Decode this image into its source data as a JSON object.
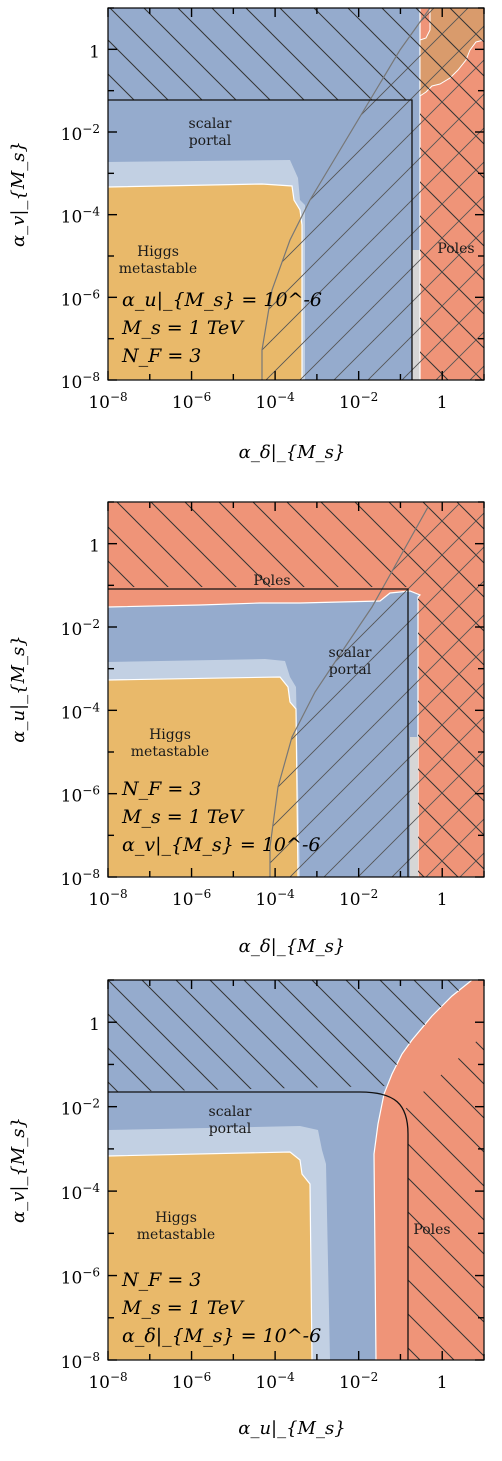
{
  "colors": {
    "scalar_portal": "#95abcd",
    "higgs_metastable": "#e9b96a",
    "poles": "#ef9478",
    "light_band": "#c2d0e3",
    "grey_band": "#d6d6d6",
    "orange_overlap": "#d99b6c"
  },
  "chart_data": [
    {
      "type": "heatmap",
      "title": "",
      "xlabel": "α_δ|_{M_s}",
      "ylabel": "α_v|_{M_s}",
      "x_scale": "log",
      "y_scale": "log",
      "xlim": [
        1e-08,
        10
      ],
      "ylim": [
        1e-08,
        10
      ],
      "x_ticks": [
        "10^-8",
        "10^-6",
        "10^-4",
        "10^-2",
        "1"
      ],
      "y_ticks": [
        "10^-8",
        "10^-6",
        "10^-4",
        "10^-2",
        "1"
      ],
      "regions": [
        {
          "label": "scalar portal"
        },
        {
          "label": "Higgs metastable"
        },
        {
          "label": "Poles"
        }
      ],
      "annotations": [
        "α_u|_{M_s} = 10^-6",
        "M_s = 1 TeV",
        "N_F = 3"
      ]
    },
    {
      "type": "heatmap",
      "title": "",
      "xlabel": "α_δ|_{M_s}",
      "ylabel": "α_u|_{M_s}",
      "x_scale": "log",
      "y_scale": "log",
      "xlim": [
        1e-08,
        10
      ],
      "ylim": [
        1e-08,
        10
      ],
      "x_ticks": [
        "10^-8",
        "10^-6",
        "10^-4",
        "10^-2",
        "1"
      ],
      "y_ticks": [
        "10^-8",
        "10^-6",
        "10^-4",
        "10^-2",
        "1"
      ],
      "regions": [
        {
          "label": "Poles"
        },
        {
          "label": "scalar portal"
        },
        {
          "label": "Higgs metastable"
        }
      ],
      "annotations": [
        "N_F = 3",
        "M_s = 1 TeV",
        "α_v|_{M_s} = 10^-6"
      ]
    },
    {
      "type": "heatmap",
      "title": "",
      "xlabel": "α_u|_{M_s}",
      "ylabel": "α_v|_{M_s}",
      "x_scale": "log",
      "y_scale": "log",
      "xlim": [
        1e-08,
        10
      ],
      "ylim": [
        1e-08,
        10
      ],
      "x_ticks": [
        "10^-8",
        "10^-6",
        "10^-4",
        "10^-2",
        "1"
      ],
      "y_ticks": [
        "10^-8",
        "10^-6",
        "10^-4",
        "10^-2",
        "1"
      ],
      "regions": [
        {
          "label": "scalar portal"
        },
        {
          "label": "Higgs metastable"
        },
        {
          "label": "Poles"
        }
      ],
      "annotations": [
        "N_F = 3",
        "M_s = 1 TeV",
        "α_δ|_{M_s} = 10^-6"
      ]
    }
  ]
}
